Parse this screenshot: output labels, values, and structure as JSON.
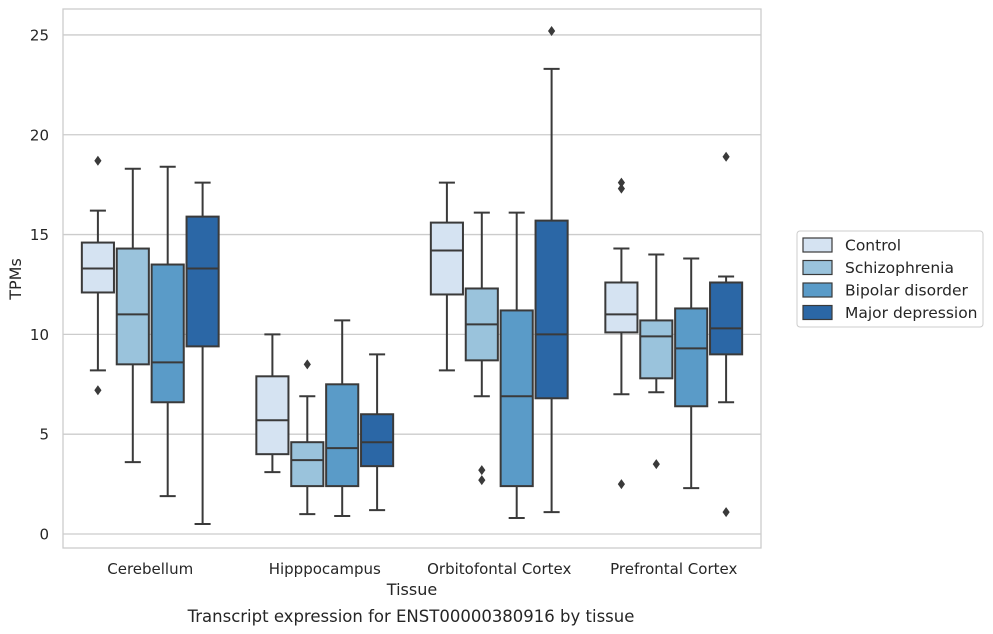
{
  "chart_data": {
    "type": "box",
    "title": "",
    "caption": "Transcript expression for ENST00000380916 by tissue",
    "xlabel": "Tissue",
    "ylabel": "TPMs",
    "ylim": [
      -0.7,
      26.3
    ],
    "yticks": [
      0,
      5,
      10,
      15,
      20,
      25
    ],
    "grid": true,
    "legend_position": "right",
    "categories": [
      "Cerebellum",
      "Hipppocampus",
      "Orbitofontal Cortex",
      "Prefrontal Cortex"
    ],
    "series": [
      {
        "name": "Control",
        "color": "#d5e3f2",
        "boxes": [
          {
            "whislo": 8.2,
            "q1": 12.1,
            "med": 13.3,
            "q3": 14.6,
            "whishi": 16.2,
            "fliers": [
              18.7,
              7.2
            ]
          },
          {
            "whislo": 3.1,
            "q1": 4.0,
            "med": 5.7,
            "q3": 7.9,
            "whishi": 10.0,
            "fliers": []
          },
          {
            "whislo": 8.2,
            "q1": 12.0,
            "med": 14.2,
            "q3": 15.6,
            "whishi": 17.6,
            "fliers": []
          },
          {
            "whislo": 7.0,
            "q1": 10.1,
            "med": 11.0,
            "q3": 12.6,
            "whishi": 14.3,
            "fliers": [
              17.6,
              17.3,
              2.5
            ]
          }
        ]
      },
      {
        "name": "Schizophrenia",
        "color": "#9ac3dc",
        "boxes": [
          {
            "whislo": 3.6,
            "q1": 8.5,
            "med": 11.0,
            "q3": 14.3,
            "whishi": 18.3,
            "fliers": []
          },
          {
            "whislo": 1.0,
            "q1": 2.4,
            "med": 3.7,
            "q3": 4.6,
            "whishi": 6.9,
            "fliers": [
              8.5
            ]
          },
          {
            "whislo": 6.9,
            "q1": 8.7,
            "med": 10.5,
            "q3": 12.3,
            "whishi": 16.1,
            "fliers": [
              3.2,
              2.7
            ]
          },
          {
            "whislo": 7.1,
            "q1": 7.8,
            "med": 9.9,
            "q3": 10.7,
            "whishi": 14.0,
            "fliers": [
              3.5
            ]
          }
        ]
      },
      {
        "name": "Bipolar disorder",
        "color": "#5a9bc8",
        "boxes": [
          {
            "whislo": 1.9,
            "q1": 6.6,
            "med": 8.6,
            "q3": 13.5,
            "whishi": 18.4,
            "fliers": []
          },
          {
            "whislo": 0.9,
            "q1": 2.4,
            "med": 4.3,
            "q3": 7.5,
            "whishi": 10.7,
            "fliers": []
          },
          {
            "whislo": 0.8,
            "q1": 2.4,
            "med": 6.9,
            "q3": 11.2,
            "whishi": 16.1,
            "fliers": []
          },
          {
            "whislo": 2.3,
            "q1": 6.4,
            "med": 9.3,
            "q3": 11.3,
            "whishi": 13.8,
            "fliers": []
          }
        ]
      },
      {
        "name": "Major depression",
        "color": "#2b67a6",
        "boxes": [
          {
            "whislo": 0.5,
            "q1": 9.4,
            "med": 13.3,
            "q3": 15.9,
            "whishi": 17.6,
            "fliers": []
          },
          {
            "whislo": 1.2,
            "q1": 3.4,
            "med": 4.6,
            "q3": 6.0,
            "whishi": 9.0,
            "fliers": []
          },
          {
            "whislo": 1.1,
            "q1": 6.8,
            "med": 10.0,
            "q3": 15.7,
            "whishi": 23.3,
            "fliers": [
              25.2
            ]
          },
          {
            "whislo": 6.6,
            "q1": 9.0,
            "med": 10.3,
            "q3": 12.6,
            "whishi": 12.9,
            "fliers": [
              18.9,
              1.1
            ]
          }
        ]
      }
    ]
  }
}
